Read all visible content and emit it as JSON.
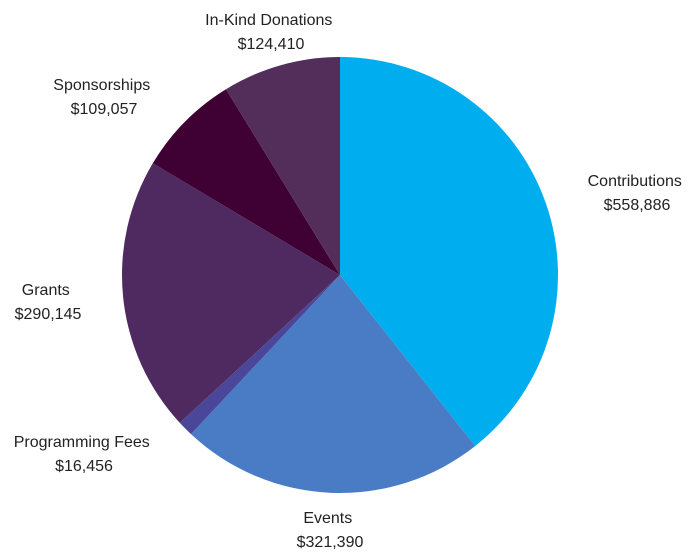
{
  "chart_data": {
    "type": "pie",
    "title": "",
    "start_angle_deg": 0,
    "direction": "clockwise",
    "slices": [
      {
        "label": "Contributions",
        "value": 558886,
        "value_label": "$558,886",
        "color": "#00AEEF"
      },
      {
        "label": "Events",
        "value": 321390,
        "value_label": "$321,390",
        "color": "#4A7CC6"
      },
      {
        "label": "Programming Fees",
        "value": 16456,
        "value_label": "$16,456",
        "color": "#4A4699"
      },
      {
        "label": "Grants",
        "value": 290145,
        "value_label": "$290,145",
        "color": "#4E2A61"
      },
      {
        "label": "Sponsorships",
        "value": 109057,
        "value_label": "$109,057",
        "color": "#3F0033"
      },
      {
        "label": "In-Kind Donations",
        "value": 124410,
        "value_label": "$124,410",
        "color": "#532E5B"
      }
    ]
  }
}
